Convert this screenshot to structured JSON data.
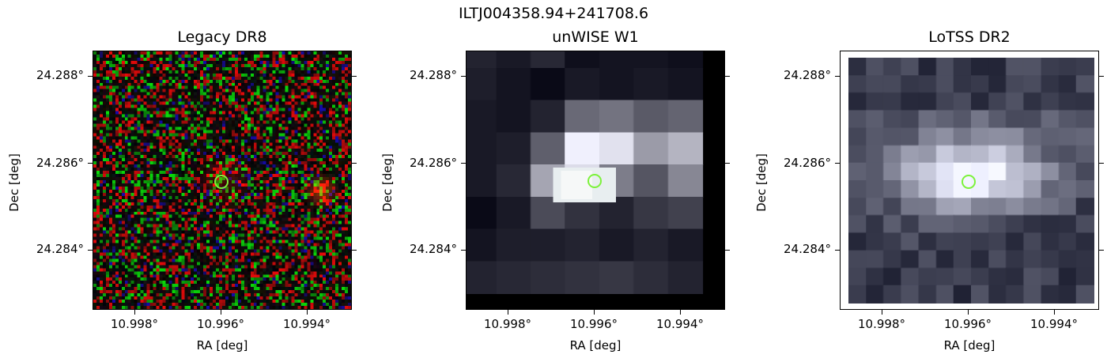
{
  "figure_title": "ILTJ004358.94+241708.6",
  "panels": [
    {
      "title": "Legacy DR8",
      "xlabel": "RA [deg]",
      "ylabel": "Dec [deg]",
      "yticks": [
        "24.288°",
        "24.286°",
        "24.284°"
      ],
      "xticks": [
        "10.998°",
        "10.996°",
        "10.994°"
      ]
    },
    {
      "title": "unWISE W1",
      "xlabel": "RA [deg]",
      "ylabel": "Dec [deg]",
      "yticks": [
        "24.288°",
        "24.286°",
        "24.284°"
      ],
      "xticks": [
        "10.998°",
        "10.996°",
        "10.994°"
      ]
    },
    {
      "title": "LoTSS DR2",
      "xlabel": "RA [deg]",
      "ylabel": "Dec [deg]",
      "yticks": [
        "24.288°",
        "24.286°",
        "24.284°"
      ],
      "xticks": [
        "10.998°",
        "10.996°",
        "10.994°"
      ]
    }
  ],
  "marker_color": "#7cf23b"
}
